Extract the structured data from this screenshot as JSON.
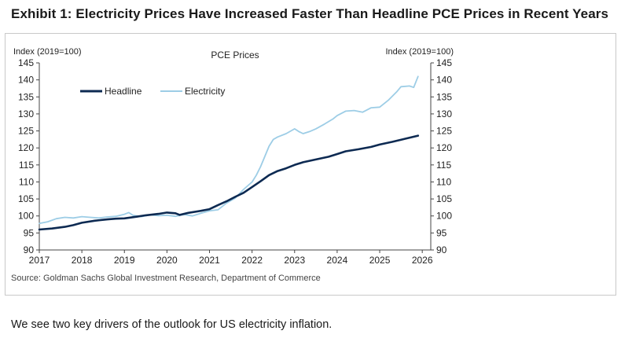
{
  "title": "Exhibit 1: Electricity Prices Have Increased Faster Than Headline PCE Prices in Recent Years",
  "source": "Source: Goldman Sachs Global Investment Research, Department of Commerce",
  "caption": "We see two key drivers of the outlook for US electricity inflation.",
  "colors": {
    "headline": "#0d2a52",
    "electricity": "#9dcde6",
    "axis": "#444444"
  },
  "chart_data": {
    "type": "line",
    "title": "PCE Prices",
    "ylabel_left": "Index (2019=100)",
    "ylabel_right": "Index (2019=100)",
    "xlim": [
      2017,
      2026.2
    ],
    "ylim": [
      90,
      145
    ],
    "x_ticks": [
      2017,
      2018,
      2019,
      2020,
      2021,
      2022,
      2023,
      2024,
      2025,
      2026
    ],
    "x_tick_labels": [
      "2017",
      "2018",
      "2019",
      "2020",
      "2021",
      "2022",
      "2023",
      "2024",
      "2025",
      "2026"
    ],
    "y_ticks": [
      90,
      95,
      100,
      105,
      110,
      115,
      120,
      125,
      130,
      135,
      140,
      145
    ],
    "y_tick_labels": [
      "90",
      "95",
      "100",
      "105",
      "110",
      "115",
      "120",
      "125",
      "130",
      "135",
      "140",
      "145"
    ],
    "legend": {
      "position": "top-left",
      "entries": [
        "Headline",
        "Electricity"
      ]
    },
    "series": [
      {
        "name": "Headline",
        "x": [
          2017.0,
          2017.3,
          2017.6,
          2017.8,
          2018.0,
          2018.3,
          2018.6,
          2018.8,
          2019.0,
          2019.3,
          2019.5,
          2019.8,
          2020.0,
          2020.2,
          2020.3,
          2020.5,
          2020.8,
          2021.0,
          2021.2,
          2021.4,
          2021.6,
          2021.8,
          2022.0,
          2022.2,
          2022.4,
          2022.6,
          2022.8,
          2023.0,
          2023.2,
          2023.5,
          2023.8,
          2024.0,
          2024.2,
          2024.5,
          2024.8,
          2025.0,
          2025.3,
          2025.6,
          2025.9
        ],
        "values": [
          96.0,
          96.3,
          96.8,
          97.3,
          98.0,
          98.6,
          99.0,
          99.2,
          99.3,
          99.8,
          100.2,
          100.6,
          101.0,
          100.8,
          100.3,
          100.9,
          101.5,
          102.0,
          103.2,
          104.3,
          105.6,
          106.8,
          108.5,
          110.2,
          112.0,
          113.2,
          114.0,
          115.0,
          115.8,
          116.6,
          117.4,
          118.2,
          119.0,
          119.6,
          120.3,
          121.0,
          121.8,
          122.7,
          123.6
        ]
      },
      {
        "name": "Electricity",
        "x": [
          2017.0,
          2017.2,
          2017.4,
          2017.6,
          2017.8,
          2018.0,
          2018.2,
          2018.4,
          2018.6,
          2018.8,
          2019.0,
          2019.1,
          2019.2,
          2019.4,
          2019.6,
          2019.8,
          2020.0,
          2020.2,
          2020.4,
          2020.6,
          2020.8,
          2021.0,
          2021.2,
          2021.4,
          2021.6,
          2021.8,
          2022.0,
          2022.1,
          2022.2,
          2022.3,
          2022.4,
          2022.5,
          2022.6,
          2022.8,
          2023.0,
          2023.1,
          2023.2,
          2023.35,
          2023.5,
          2023.7,
          2023.9,
          2024.0,
          2024.2,
          2024.4,
          2024.6,
          2024.8,
          2025.0,
          2025.2,
          2025.4,
          2025.5,
          2025.7,
          2025.8,
          2025.9
        ],
        "values": [
          97.8,
          98.3,
          99.2,
          99.6,
          99.4,
          99.8,
          99.6,
          99.4,
          99.7,
          99.9,
          100.5,
          101.0,
          100.2,
          99.8,
          100.3,
          100.1,
          100.2,
          99.9,
          100.4,
          100.0,
          100.8,
          101.5,
          101.8,
          103.8,
          105.2,
          107.8,
          110.0,
          112.0,
          114.5,
          117.5,
          120.5,
          122.5,
          123.2,
          124.2,
          125.6,
          124.8,
          124.2,
          124.8,
          125.6,
          127.0,
          128.5,
          129.5,
          130.8,
          131.0,
          130.5,
          131.8,
          132.0,
          134.0,
          136.5,
          138.0,
          138.2,
          137.8,
          141.0
        ]
      }
    ]
  }
}
